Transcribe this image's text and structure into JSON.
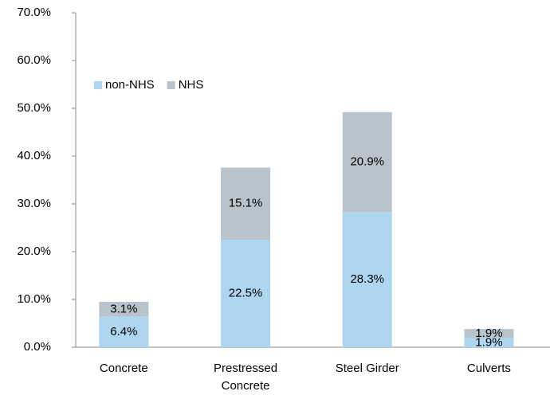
{
  "chart_data": {
    "type": "stacked_bar",
    "categories": [
      "Concrete",
      "Prestressed Concrete",
      "Steel Girder",
      "Culverts"
    ],
    "series": [
      {
        "name": "non-NHS",
        "color": "#aed6f1",
        "values": [
          6.4,
          22.5,
          28.3,
          1.9
        ],
        "value_labels": [
          "6.4%",
          "22.5%",
          "28.3%",
          "1.9%"
        ]
      },
      {
        "name": "NHS",
        "color": "#b9c3cc",
        "values": [
          3.1,
          15.1,
          20.9,
          1.9
        ],
        "value_labels": [
          "3.1%",
          "15.1%",
          "20.9%",
          "1.9%"
        ]
      }
    ],
    "ylim": [
      0,
      70
    ],
    "yticks": [
      {
        "value": 0,
        "label": "0.0%"
      },
      {
        "value": 10,
        "label": "10.0%"
      },
      {
        "value": 20,
        "label": "20.0%"
      },
      {
        "value": 30,
        "label": "30.0%"
      },
      {
        "value": 40,
        "label": "40.0%"
      },
      {
        "value": 50,
        "label": "50.0%"
      },
      {
        "value": 60,
        "label": "60.0%"
      },
      {
        "value": 70,
        "label": "70.0%"
      }
    ],
    "grid": false,
    "legend": "upper left"
  }
}
